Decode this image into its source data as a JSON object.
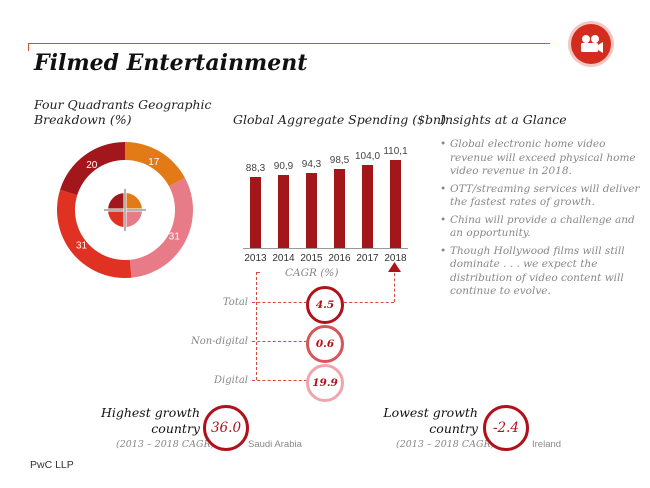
{
  "title": "Filmed Entertainment",
  "sections": {
    "geo": "Four Quadrants Geographic Breakdown (%)",
    "spending": "Global Aggregate Spending ($bn)",
    "insights": "Insights at a Glance"
  },
  "chart_data": [
    {
      "type": "pie",
      "title": "Four Quadrants Geographic Breakdown (%)",
      "categories": [
        "",
        "",
        "",
        ""
      ],
      "values": [
        17,
        31,
        31,
        20
      ],
      "colors": [
        "#e27b16",
        "#e87b88",
        "#e03222",
        "#a1171c"
      ]
    },
    {
      "type": "bar",
      "title": "Global Aggregate Spending ($bn)",
      "categories": [
        "2013",
        "2014",
        "2015",
        "2016",
        "2017",
        "2018"
      ],
      "values": [
        88.3,
        90.9,
        94.3,
        98.5,
        104.0,
        110.1
      ],
      "value_labels": [
        "88,3",
        "90,9",
        "94,3",
        "98,5",
        "104,0",
        "110,1"
      ],
      "ylim": [
        0,
        120
      ],
      "color": "#a1171c"
    }
  ],
  "cagr": {
    "label": "CAGR (%)",
    "rows": [
      {
        "label": "Total",
        "value": "4.5"
      },
      {
        "label": "Non-digital",
        "value": "0.6"
      },
      {
        "label": "Digital",
        "value": "19.9"
      }
    ]
  },
  "insights": [
    "Global electronic home video revenue will exceed physical home video revenue in 2018.",
    "OTT/streaming services will deliver the fastest rates of growth.",
    "China will provide a challenge and an opportunity.",
    "Though Hollywood films will still dominate . . . we expect the distribution of video content will continue to evolve."
  ],
  "highest": {
    "line1": "Highest growth",
    "line2": "country",
    "sub": "(2013 – 2018 CAGR)",
    "value": "36.0",
    "country": "Saudi Arabia"
  },
  "lowest": {
    "line1": "Lowest growth",
    "line2": "country",
    "sub": "(2013 – 2018 CAGR)",
    "value": "-2.4",
    "country": "Ireland"
  },
  "footer": "PwC LLP",
  "icons": {
    "badge": "film-camera-icon",
    "donut_center": "crosshair-quadrants-icon"
  }
}
